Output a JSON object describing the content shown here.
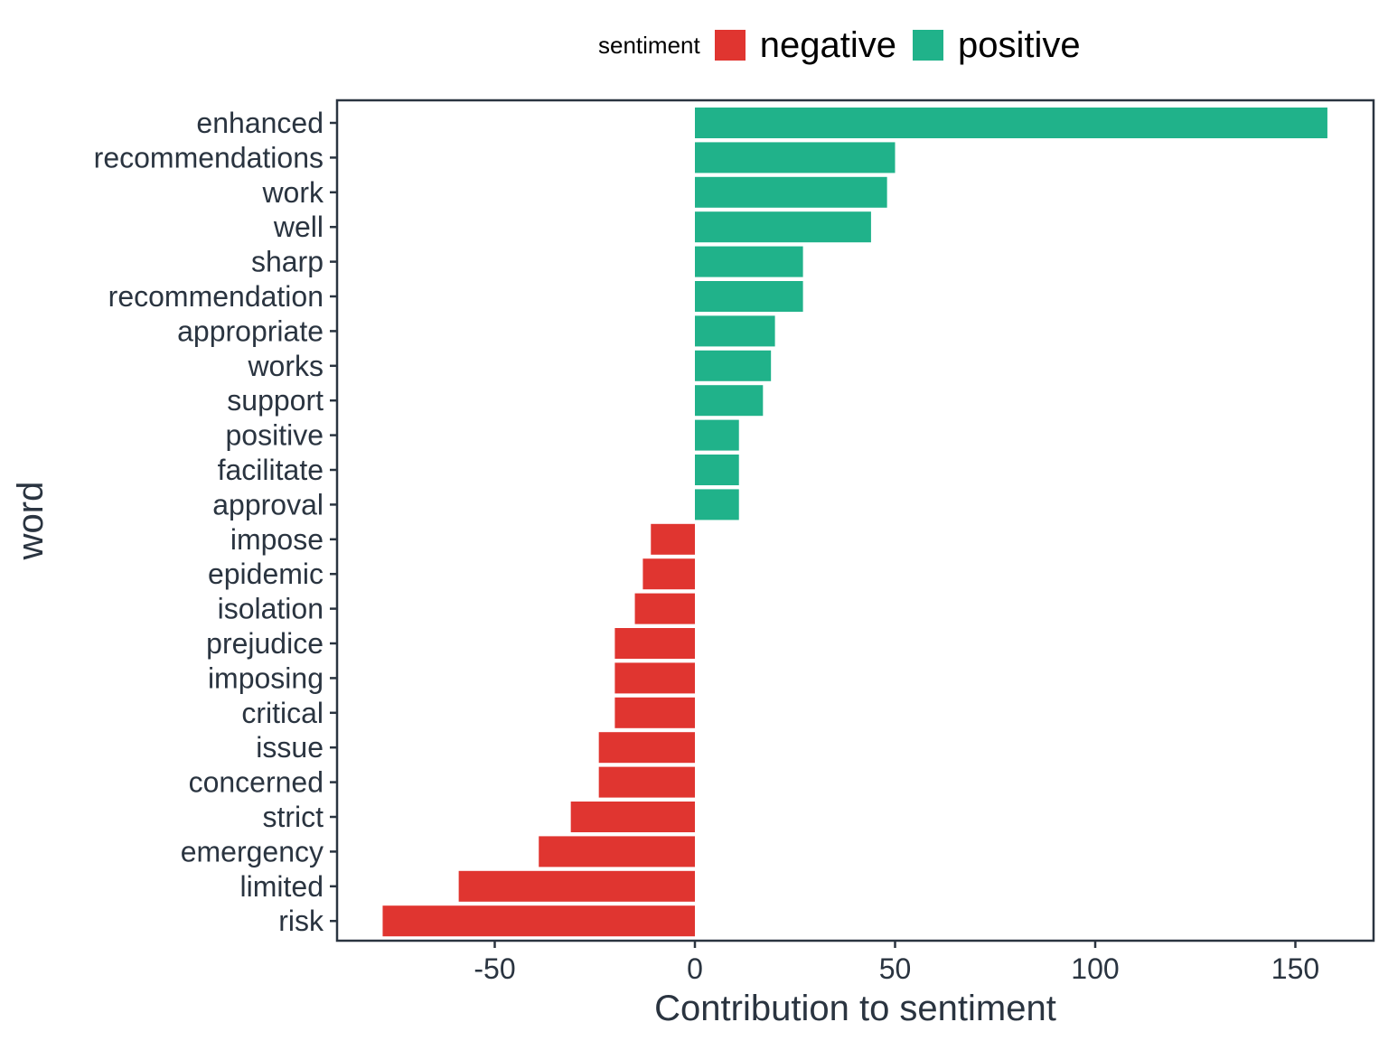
{
  "chart_data": {
    "type": "bar",
    "orientation": "horizontal",
    "xlabel": "Contribution to sentiment",
    "ylabel": "word",
    "xlim": [
      -90,
      170
    ],
    "xticks": [
      -50,
      0,
      50,
      100,
      150
    ],
    "xtick_labels": [
      "-50",
      "0",
      "50",
      "100",
      "150"
    ],
    "grid": false,
    "legend": {
      "title": "sentiment",
      "placement": "top",
      "entries": [
        {
          "label": "negative",
          "color": "#e03530"
        },
        {
          "label": "positive",
          "color": "#20b28a"
        }
      ]
    },
    "categories": [
      "enhanced",
      "recommendations",
      "work",
      "well",
      "sharp",
      "recommendation",
      "appropriate",
      "works",
      "support",
      "positive",
      "facilitate",
      "approval",
      "impose",
      "epidemic",
      "isolation",
      "prejudice",
      "imposing",
      "critical",
      "issue",
      "concerned",
      "strict",
      "emergency",
      "limited",
      "risk"
    ],
    "values": [
      158,
      50,
      48,
      44,
      27,
      27,
      20,
      19,
      17,
      11,
      11,
      11,
      -11,
      -13,
      -15,
      -20,
      -20,
      -20,
      -24,
      -24,
      -31,
      -39,
      -59,
      -78
    ],
    "sentiment": [
      "positive",
      "positive",
      "positive",
      "positive",
      "positive",
      "positive",
      "positive",
      "positive",
      "positive",
      "positive",
      "positive",
      "positive",
      "negative",
      "negative",
      "negative",
      "negative",
      "negative",
      "negative",
      "negative",
      "negative",
      "negative",
      "negative",
      "negative",
      "negative"
    ]
  }
}
